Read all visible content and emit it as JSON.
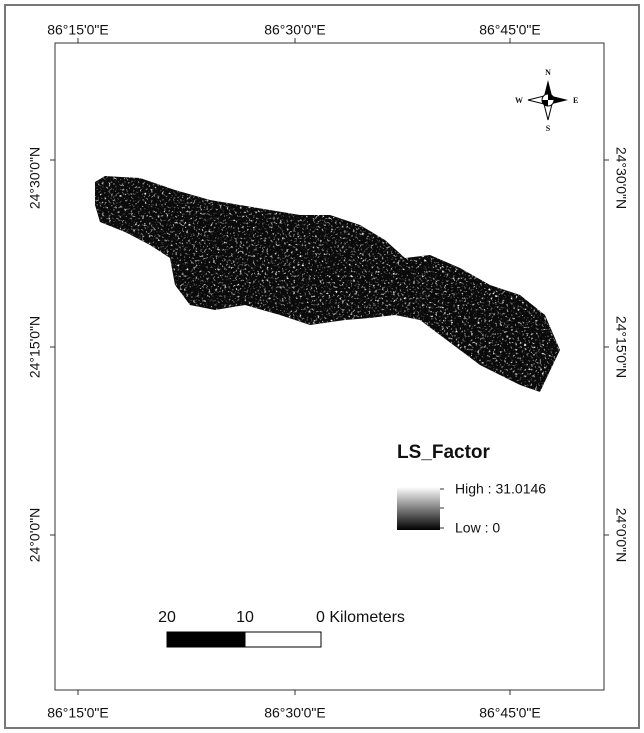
{
  "map": {
    "longitude_labels": [
      "86°15'0\"E",
      "86°30'0\"E",
      "86°45'0\"E"
    ],
    "latitude_labels": [
      "24°30'0\"N",
      "24°15'0\"N",
      "24°0'0\"N"
    ],
    "north_arrow": {
      "n": "N",
      "e": "E",
      "s": "S",
      "w": "W"
    },
    "legend": {
      "title": "LS_Factor",
      "high": "High : 31.0146",
      "low": "Low : 0"
    },
    "scale_bar": {
      "labels": [
        "20",
        "10",
        "0 Kilometers"
      ]
    }
  }
}
